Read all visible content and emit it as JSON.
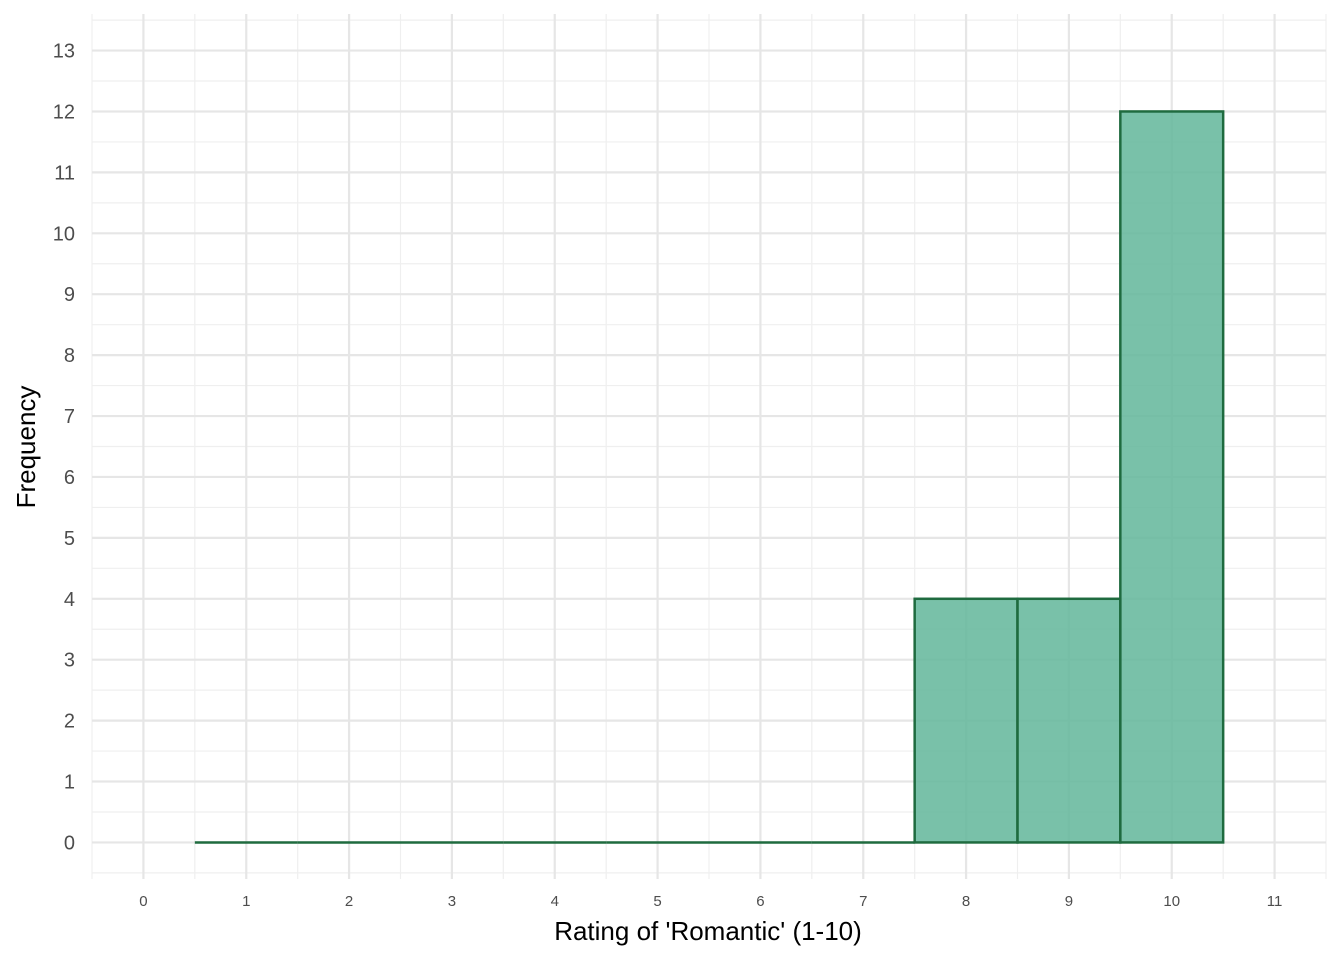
{
  "chart_data": {
    "type": "bar",
    "title": "",
    "xlabel": "Rating of 'Romantic' (1-10)",
    "ylabel": "Frequency",
    "categories": [
      "1",
      "2",
      "3",
      "4",
      "5",
      "6",
      "7",
      "8",
      "9",
      "10"
    ],
    "values": [
      0,
      0,
      0,
      0,
      0,
      0,
      0,
      4,
      4,
      12
    ],
    "bin_width": 1,
    "xlim": [
      -0.5,
      11.5
    ],
    "ylim": [
      -0.6,
      13.6
    ],
    "x_ticks": [
      0,
      1,
      2,
      3,
      4,
      5,
      6,
      7,
      8,
      9,
      10,
      11
    ],
    "y_ticks": [
      0,
      1,
      2,
      3,
      4,
      5,
      6,
      7,
      8,
      9,
      10,
      11,
      12,
      13
    ],
    "grid": true,
    "fill_color": "#66b89d",
    "edge_color": "#1f6b3f"
  }
}
